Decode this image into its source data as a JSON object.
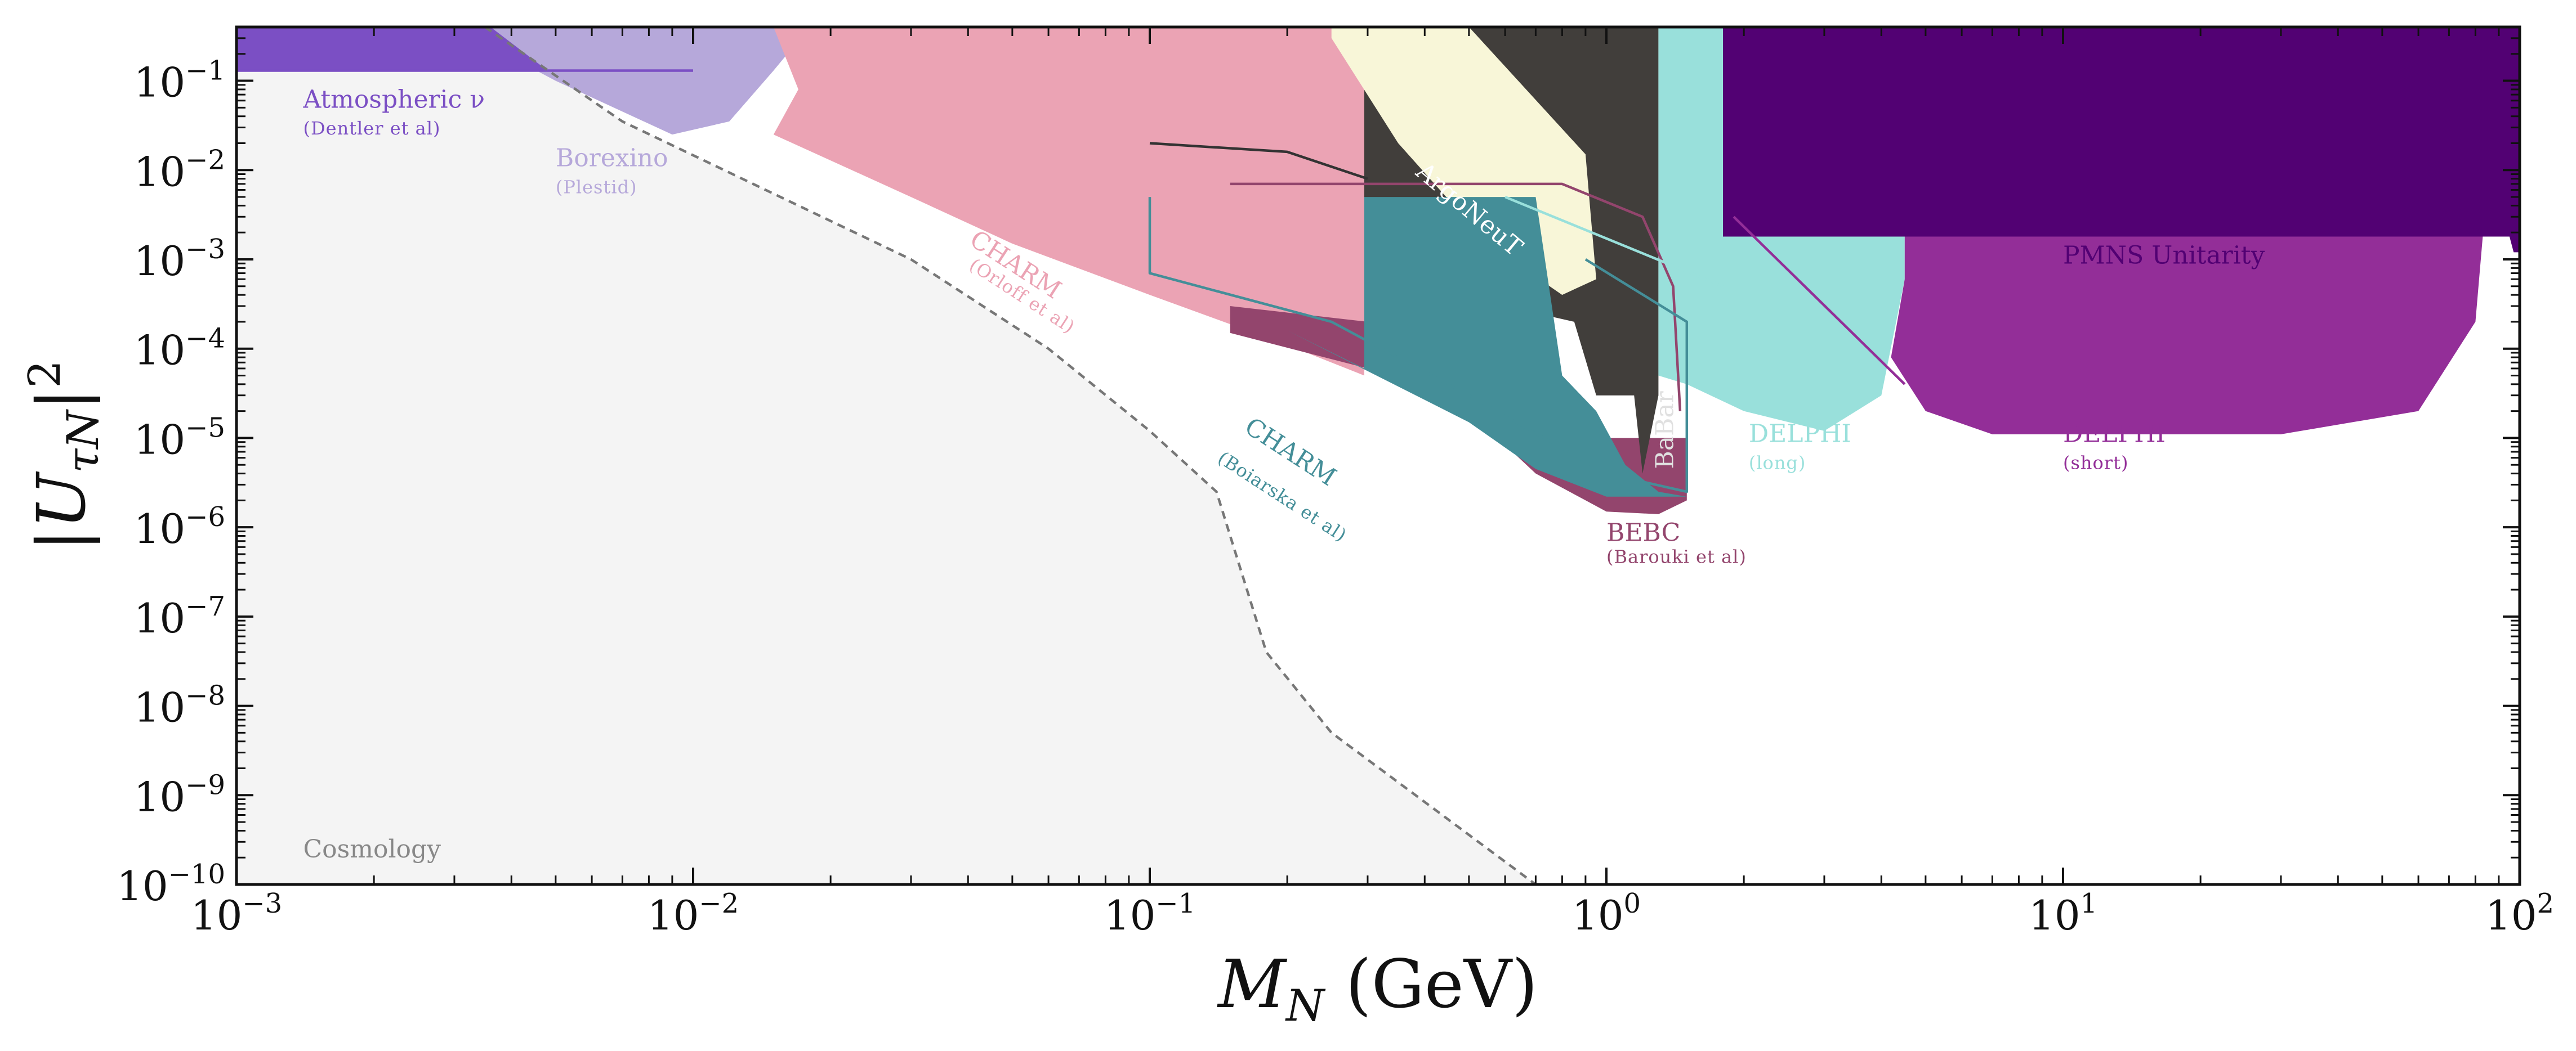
{
  "chart_data": {
    "type": "area",
    "title": "",
    "xlabel": "M_N (GeV)",
    "ylabel": "|U_τN|^2",
    "x_scale": "log",
    "y_scale": "log",
    "xlim": [
      0.001,
      100
    ],
    "ylim": [
      1e-10,
      0.4
    ],
    "x_ticks": [
      {
        "value": 0.001,
        "base": "10",
        "exp": "−3"
      },
      {
        "value": 0.01,
        "base": "10",
        "exp": "−2"
      },
      {
        "value": 0.1,
        "base": "10",
        "exp": "−1"
      },
      {
        "value": 1,
        "base": "10",
        "exp": "0"
      },
      {
        "value": 10,
        "base": "10",
        "exp": "1"
      },
      {
        "value": 100,
        "base": "10",
        "exp": "2"
      }
    ],
    "y_ticks": [
      {
        "value": 1e-10,
        "base": "10",
        "exp": "−10"
      },
      {
        "value": 1e-09,
        "base": "10",
        "exp": "−9"
      },
      {
        "value": 1e-08,
        "base": "10",
        "exp": "−8"
      },
      {
        "value": 1e-07,
        "base": "10",
        "exp": "−7"
      },
      {
        "value": 1e-06,
        "base": "10",
        "exp": "−6"
      },
      {
        "value": 1e-05,
        "base": "10",
        "exp": "−5"
      },
      {
        "value": 0.0001,
        "base": "10",
        "exp": "−4"
      },
      {
        "value": 0.001,
        "base": "10",
        "exp": "−3"
      },
      {
        "value": 0.01,
        "base": "10",
        "exp": "−2"
      },
      {
        "value": 0.1,
        "base": "10",
        "exp": "−1"
      }
    ],
    "regions": [
      {
        "name": "Cosmology",
        "color": "#f4f4f4",
        "points": [
          [
            0.001,
            1e-10
          ],
          [
            0.001,
            0.4
          ],
          [
            0.0035,
            0.4
          ],
          [
            0.007,
            0.035
          ],
          [
            0.03,
            0.001
          ],
          [
            0.06,
            0.0001
          ],
          [
            0.1,
            1.2e-05
          ],
          [
            0.14,
            2.5e-06
          ],
          [
            0.18,
            4e-08
          ],
          [
            0.25,
            5e-09
          ],
          [
            0.7,
            1e-10
          ]
        ]
      },
      {
        "name": "Borexino",
        "color": "#b6a8da",
        "points": [
          [
            0.003,
            0.4
          ],
          [
            0.018,
            0.4
          ],
          [
            0.015,
            0.13
          ],
          [
            0.012,
            0.035
          ],
          [
            0.009,
            0.025
          ],
          [
            0.005,
            0.1
          ]
        ]
      },
      {
        "name": "Atmospheric",
        "color": "#7b4fc4",
        "points": [
          [
            0.001,
            0.13
          ],
          [
            0.001,
            0.4
          ],
          [
            0.0036,
            0.4
          ],
          [
            0.0048,
            0.13
          ]
        ]
      },
      {
        "name": "CHARM Orloff",
        "color": "#eba3b4",
        "points": [
          [
            0.015,
            0.4
          ],
          [
            0.295,
            0.4
          ],
          [
            0.295,
            5e-05
          ],
          [
            0.2,
            0.00011
          ],
          [
            0.1,
            0.0004
          ],
          [
            0.05,
            0.0015
          ],
          [
            0.03,
            0.005
          ],
          [
            0.015,
            0.025
          ],
          [
            0.017,
            0.08
          ]
        ]
      },
      {
        "name": "BEBC",
        "color": "#93456d",
        "points": [
          [
            0.15,
            0.00015
          ],
          [
            0.3,
            6e-05
          ],
          [
            0.5,
            2e-05
          ],
          [
            0.7,
            4e-06
          ],
          [
            1.0,
            1.5e-06
          ],
          [
            1.3,
            1.4e-06
          ],
          [
            1.5,
            2e-06
          ],
          [
            1.5,
            1e-05
          ],
          [
            0.8,
            1e-05
          ],
          [
            0.5,
            0.0001
          ],
          [
            0.3,
            0.0002
          ],
          [
            0.15,
            0.0003
          ]
        ]
      },
      {
        "name": "ArgoNeuT",
        "color": "#413e3b",
        "points": [
          [
            0.295,
            0.4
          ],
          [
            1.3,
            0.4
          ],
          [
            1.3,
            3e-05
          ],
          [
            1.2,
            4e-06
          ],
          [
            1.15,
            3e-05
          ],
          [
            0.95,
            3e-05
          ],
          [
            0.85,
            0.0002
          ],
          [
            0.6,
            0.0003
          ],
          [
            0.4,
            0.001
          ],
          [
            0.295,
            0.002
          ]
        ]
      },
      {
        "name": "ArgoNeuT ellipse",
        "color": "#f8f6d8",
        "points": [
          [
            0.25,
            0.4
          ],
          [
            0.5,
            0.4
          ],
          [
            0.9,
            0.015
          ],
          [
            0.95,
            0.0006
          ],
          [
            0.8,
            0.0004
          ],
          [
            0.55,
            0.0015
          ],
          [
            0.35,
            0.02
          ],
          [
            0.25,
            0.3
          ]
        ]
      },
      {
        "name": "DELPHI long",
        "color": "#99e0db",
        "points": [
          [
            1.3,
            0.4
          ],
          [
            4.5,
            0.4
          ],
          [
            4.5,
            0.0006
          ],
          [
            4.0,
            3e-05
          ],
          [
            3.0,
            1.2e-05
          ],
          [
            2.0,
            2e-05
          ],
          [
            1.5,
            4e-05
          ],
          [
            1.3,
            5e-05
          ]
        ]
      },
      {
        "name": "DELPHI short",
        "color": "#932e98",
        "points": [
          [
            4.5,
            0.0018
          ],
          [
            83,
            0.0018
          ],
          [
            80,
            0.0002
          ],
          [
            60,
            2e-05
          ],
          [
            30,
            1.1e-05
          ],
          [
            7,
            1.1e-05
          ],
          [
            5,
            2e-05
          ],
          [
            4.2,
            8e-05
          ],
          [
            4.5,
            0.0006
          ]
        ]
      },
      {
        "name": "CHARM Boiarska",
        "color": "#448e98",
        "points": [
          [
            0.295,
            0.005
          ],
          [
            0.7,
            0.005
          ],
          [
            0.8,
            5e-05
          ],
          [
            0.95,
            2e-05
          ],
          [
            1.1,
            5e-06
          ],
          [
            1.3,
            2.5e-06
          ],
          [
            1.5,
            2.2e-06
          ],
          [
            1.0,
            2.2e-06
          ],
          [
            0.7,
            4.5e-06
          ],
          [
            0.5,
            1.5e-05
          ],
          [
            0.2,
            0.00016
          ],
          [
            0.295,
            6e-05
          ]
        ]
      },
      {
        "name": "PMNS Unitarity",
        "color": "#520173",
        "points": [
          [
            1.8,
            0.4
          ],
          [
            100,
            0.4
          ],
          [
            100,
            0.0012
          ],
          [
            97,
            0.0012
          ],
          [
            95,
            0.0018
          ],
          [
            1.8,
            0.0018
          ]
        ]
      }
    ],
    "lines": [
      {
        "name": "Atmospheric line",
        "color": "#7b4fc4",
        "dash": "",
        "points": [
          [
            0.001,
            0.13
          ],
          [
            0.01,
            0.13
          ]
        ]
      },
      {
        "name": "ArgoNeuT line",
        "color": "#333333",
        "dash": "",
        "points": [
          [
            0.1,
            0.02
          ],
          [
            0.2,
            0.016
          ],
          [
            0.3,
            0.008
          ]
        ]
      },
      {
        "name": "BEBC line",
        "color": "#93456d",
        "dash": "",
        "points": [
          [
            0.15,
            0.007
          ],
          [
            0.8,
            0.007
          ],
          [
            1.2,
            0.003
          ],
          [
            1.4,
            0.0005
          ],
          [
            1.45,
            2e-05
          ]
        ]
      },
      {
        "name": "CHARM Boiarska line",
        "color": "#448e98",
        "dash": "",
        "points": [
          [
            0.1,
            0.005
          ],
          [
            0.1,
            0.0007
          ],
          [
            0.25,
            0.0002
          ],
          [
            0.5,
            3e-05
          ],
          [
            1.0,
            4e-06
          ],
          [
            1.5,
            2.5e-06
          ],
          [
            1.5,
            0.0002
          ],
          [
            0.9,
            0.001
          ]
        ]
      },
      {
        "name": "DELPHI long line",
        "color": "#99e0db",
        "dash": "",
        "points": [
          [
            0.6,
            0.005
          ],
          [
            1.8,
            0.0005
          ]
        ]
      },
      {
        "name": "DELPHI short line",
        "color": "#932e98",
        "dash": "",
        "points": [
          [
            1.9,
            0.003
          ],
          [
            4.5,
            4e-05
          ]
        ]
      },
      {
        "name": "Cosmology bound",
        "color": "#777777",
        "dash": "14,10",
        "points": [
          [
            0.0035,
            0.4
          ],
          [
            0.007,
            0.035
          ],
          [
            0.03,
            0.001
          ],
          [
            0.06,
            0.0001
          ],
          [
            0.1,
            1.2e-05
          ],
          [
            0.14,
            2.5e-06
          ],
          [
            0.18,
            4e-08
          ],
          [
            0.25,
            5e-09
          ],
          [
            0.7,
            1e-10
          ]
        ]
      }
    ],
    "labels": [
      {
        "name": "atmospheric-label",
        "text": "Atmospheric ν",
        "x": 0.0014,
        "y": 0.05,
        "color": "#7b4fc4",
        "rotate": 0
      },
      {
        "name": "atmospheric-sub",
        "text": "(Dentler et al)",
        "x": 0.0014,
        "y": 0.025,
        "color": "#7b4fc4",
        "rotate": 0,
        "small": true
      },
      {
        "name": "borexino-label",
        "text": "Borexino",
        "x": 0.005,
        "y": 0.011,
        "color": "#b6a8da",
        "rotate": 0
      },
      {
        "name": "borexino-sub",
        "text": "(Plestid)",
        "x": 0.005,
        "y": 0.0055,
        "color": "#b6a8da",
        "rotate": 0,
        "small": true
      },
      {
        "name": "charm-orloff-label",
        "text": "CHARM",
        "x": 0.04,
        "y": 0.0015,
        "color": "#eba3b4",
        "rotate": 33
      },
      {
        "name": "charm-orloff-sub",
        "text": "(Orloff et al)",
        "x": 0.04,
        "y": 0.0008,
        "color": "#eba3b4",
        "rotate": 33,
        "small": true
      },
      {
        "name": "argoneut-label",
        "text": "ArgoNeuT",
        "x": 0.38,
        "y": 0.009,
        "color": "#ffffff",
        "rotate": 40
      },
      {
        "name": "charm-boiarska-label",
        "text": "CHARM",
        "x": 0.16,
        "y": 1.2e-05,
        "color": "#448e98",
        "rotate": 33
      },
      {
        "name": "charm-boiarska-sub",
        "text": "(Boiarska et al)",
        "x": 0.14,
        "y": 5.5e-06,
        "color": "#448e98",
        "rotate": 33,
        "small": true
      },
      {
        "name": "babar-label",
        "text": "BaBar",
        "x": 1.4,
        "y": 4.5e-06,
        "color": "#e0e0e0",
        "rotate": -90
      },
      {
        "name": "bebc-label",
        "text": "BEBC",
        "x": 1.0,
        "y": 7e-07,
        "color": "#93456d",
        "rotate": 0
      },
      {
        "name": "bebc-sub",
        "text": "(Barouki et al)",
        "x": 1.0,
        "y": 4e-07,
        "color": "#93456d",
        "rotate": 0,
        "small": true
      },
      {
        "name": "delphi-long-label",
        "text": "DELPHI",
        "x": 2.05,
        "y": 9e-06,
        "color": "#99e0db",
        "rotate": 0
      },
      {
        "name": "delphi-long-sub",
        "text": "(long)",
        "x": 2.05,
        "y": 4.5e-06,
        "color": "#99e0db",
        "rotate": 0,
        "small": true
      },
      {
        "name": "delphi-short-label",
        "text": "DELPHI",
        "x": 10,
        "y": 9e-06,
        "color": "#932e98",
        "rotate": 0
      },
      {
        "name": "delphi-short-sub",
        "text": "(short)",
        "x": 10,
        "y": 4.5e-06,
        "color": "#932e98",
        "rotate": 0,
        "small": true
      },
      {
        "name": "pmns-label",
        "text": "PMNS Unitarity",
        "x": 10,
        "y": 0.0009,
        "color": "#520173",
        "rotate": 0
      },
      {
        "name": "cosmology-label",
        "text": "Cosmology",
        "x": 0.0014,
        "y": 2e-10,
        "color": "#888888",
        "rotate": 0
      }
    ]
  }
}
